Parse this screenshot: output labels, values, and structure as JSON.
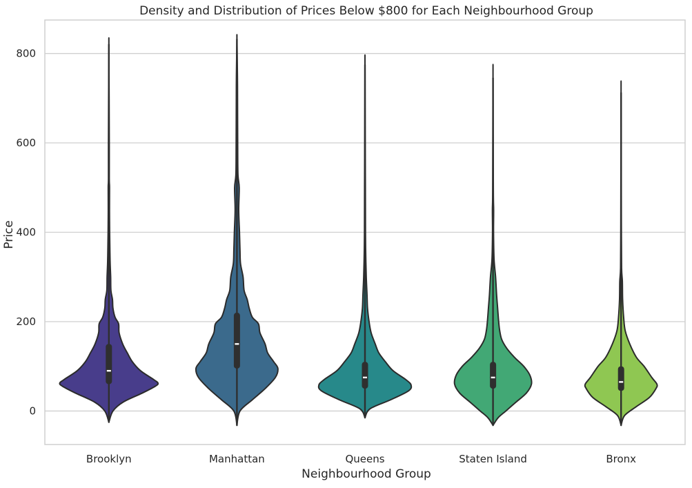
{
  "chart_data": {
    "type": "violin",
    "title": "Density and Distribution of Prices Below $800 for Each Neighbourhood Group",
    "xlabel": "Neighbourhood Group",
    "ylabel": "Price",
    "ylim": [
      -75,
      875
    ],
    "yticks": [
      0,
      200,
      400,
      600,
      800
    ],
    "grid": "horizontal",
    "categories": [
      "Brooklyn",
      "Manhattan",
      "Queens",
      "Staten Island",
      "Bronx"
    ],
    "colors": [
      "#483d8b",
      "#3b6a8c",
      "#27898a",
      "#42a875",
      "#8fc752"
    ],
    "series": [
      {
        "category": "Brooklyn",
        "density_extent": [
          -25,
          820
        ],
        "whisker": [
          5,
          282
        ],
        "q1": 60,
        "median": 90,
        "q3": 150,
        "profile": [
          [
            -25,
            0
          ],
          [
            0,
            0.08
          ],
          [
            20,
            0.28
          ],
          [
            40,
            0.65
          ],
          [
            55,
            0.9
          ],
          [
            62,
            0.96
          ],
          [
            70,
            0.88
          ],
          [
            90,
            0.62
          ],
          [
            110,
            0.46
          ],
          [
            130,
            0.36
          ],
          [
            150,
            0.27
          ],
          [
            175,
            0.2
          ],
          [
            195,
            0.19
          ],
          [
            210,
            0.12
          ],
          [
            230,
            0.08
          ],
          [
            250,
            0.07
          ],
          [
            270,
            0.04
          ],
          [
            300,
            0.035
          ],
          [
            330,
            0.025
          ],
          [
            360,
            0.02
          ],
          [
            400,
            0.015
          ],
          [
            450,
            0.012
          ],
          [
            500,
            0.013
          ],
          [
            520,
            0.008
          ],
          [
            600,
            0.008
          ],
          [
            700,
            0.005
          ],
          [
            820,
            0
          ]
        ]
      },
      {
        "category": "Manhattan",
        "density_extent": [
          -32,
          832
        ],
        "whisker": [
          0,
          395
        ],
        "q1": 95,
        "median": 150,
        "q3": 220,
        "profile": [
          [
            -32,
            0
          ],
          [
            0,
            0.06
          ],
          [
            25,
            0.3
          ],
          [
            50,
            0.55
          ],
          [
            75,
            0.75
          ],
          [
            95,
            0.8
          ],
          [
            110,
            0.72
          ],
          [
            130,
            0.6
          ],
          [
            150,
            0.55
          ],
          [
            175,
            0.45
          ],
          [
            195,
            0.42
          ],
          [
            210,
            0.3
          ],
          [
            230,
            0.24
          ],
          [
            250,
            0.2
          ],
          [
            270,
            0.14
          ],
          [
            300,
            0.12
          ],
          [
            330,
            0.07
          ],
          [
            360,
            0.06
          ],
          [
            400,
            0.05
          ],
          [
            450,
            0.035
          ],
          [
            500,
            0.045
          ],
          [
            530,
            0.02
          ],
          [
            600,
            0.015
          ],
          [
            700,
            0.012
          ],
          [
            750,
            0.01
          ],
          [
            832,
            0
          ]
        ]
      },
      {
        "category": "Queens",
        "density_extent": [
          -15,
          775
        ],
        "whisker": [
          -5,
          200
        ],
        "q1": 50,
        "median": 75,
        "q3": 110,
        "profile": [
          [
            -15,
            0
          ],
          [
            5,
            0.1
          ],
          [
            25,
            0.5
          ],
          [
            45,
            0.85
          ],
          [
            58,
            0.9
          ],
          [
            70,
            0.8
          ],
          [
            90,
            0.55
          ],
          [
            110,
            0.4
          ],
          [
            130,
            0.27
          ],
          [
            150,
            0.2
          ],
          [
            175,
            0.12
          ],
          [
            200,
            0.08
          ],
          [
            230,
            0.05
          ],
          [
            260,
            0.04
          ],
          [
            300,
            0.025
          ],
          [
            350,
            0.015
          ],
          [
            400,
            0.01
          ],
          [
            500,
            0.008
          ],
          [
            600,
            0.005
          ],
          [
            775,
            0
          ]
        ]
      },
      {
        "category": "Staten Island",
        "density_extent": [
          -32,
          745
        ],
        "whisker": [
          15,
          195
        ],
        "q1": 50,
        "median": 75,
        "q3": 110,
        "profile": [
          [
            -32,
            0
          ],
          [
            -15,
            0.1
          ],
          [
            0,
            0.25
          ],
          [
            20,
            0.45
          ],
          [
            40,
            0.65
          ],
          [
            60,
            0.75
          ],
          [
            80,
            0.72
          ],
          [
            100,
            0.6
          ],
          [
            120,
            0.42
          ],
          [
            140,
            0.27
          ],
          [
            160,
            0.17
          ],
          [
            180,
            0.13
          ],
          [
            200,
            0.11
          ],
          [
            230,
            0.09
          ],
          [
            260,
            0.07
          ],
          [
            300,
            0.05
          ],
          [
            340,
            0.02
          ],
          [
            400,
            0.01
          ],
          [
            450,
            0.012
          ],
          [
            500,
            0.006
          ],
          [
            745,
            0
          ]
        ]
      },
      {
        "category": "Bronx",
        "density_extent": [
          -32,
          712
        ],
        "whisker": [
          0,
          178
        ],
        "q1": 45,
        "median": 65,
        "q3": 100,
        "profile": [
          [
            -32,
            0
          ],
          [
            -10,
            0.07
          ],
          [
            10,
            0.3
          ],
          [
            30,
            0.55
          ],
          [
            50,
            0.68
          ],
          [
            60,
            0.7
          ],
          [
            75,
            0.6
          ],
          [
            100,
            0.45
          ],
          [
            120,
            0.3
          ],
          [
            150,
            0.17
          ],
          [
            180,
            0.08
          ],
          [
            210,
            0.05
          ],
          [
            250,
            0.03
          ],
          [
            290,
            0.025
          ],
          [
            320,
            0.01
          ],
          [
            400,
            0.006
          ],
          [
            500,
            0.004
          ],
          [
            712,
            0
          ]
        ]
      }
    ]
  }
}
